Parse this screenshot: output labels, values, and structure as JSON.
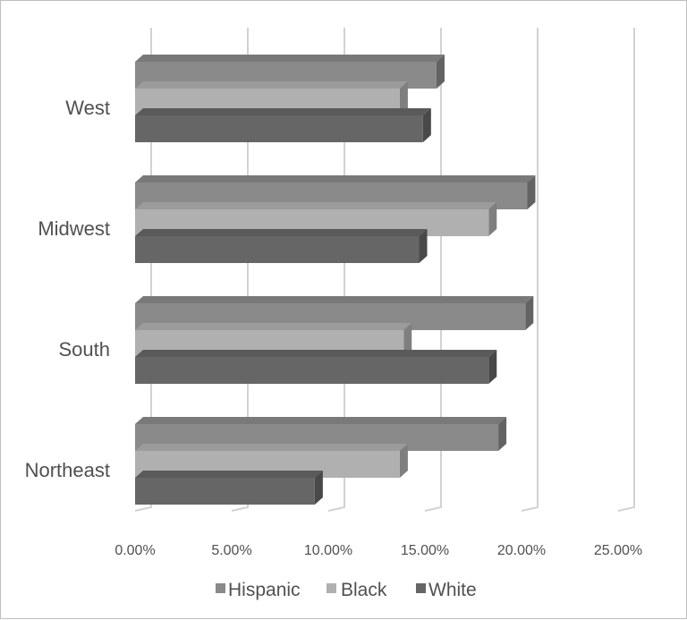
{
  "chart_data": {
    "type": "bar",
    "orientation": "horizontal",
    "style": "3d-clustered",
    "categories": [
      "West",
      "Midwest",
      "South",
      "Northeast"
    ],
    "series": [
      {
        "name": "Hispanic",
        "values": [
          15.6,
          20.3,
          20.2,
          18.8
        ],
        "color": "#8a8a8a"
      },
      {
        "name": "Black",
        "values": [
          13.7,
          18.3,
          13.9,
          13.7
        ],
        "color": "#b0b0b0"
      },
      {
        "name": "White",
        "values": [
          14.9,
          14.7,
          18.3,
          9.3
        ],
        "color": "#666666"
      }
    ],
    "xlim": [
      0,
      25
    ],
    "xticks": [
      "0.00%",
      "5.00%",
      "10.00%",
      "15.00%",
      "20.00%",
      "25.00%"
    ],
    "grid": true,
    "legend": "bottom"
  }
}
